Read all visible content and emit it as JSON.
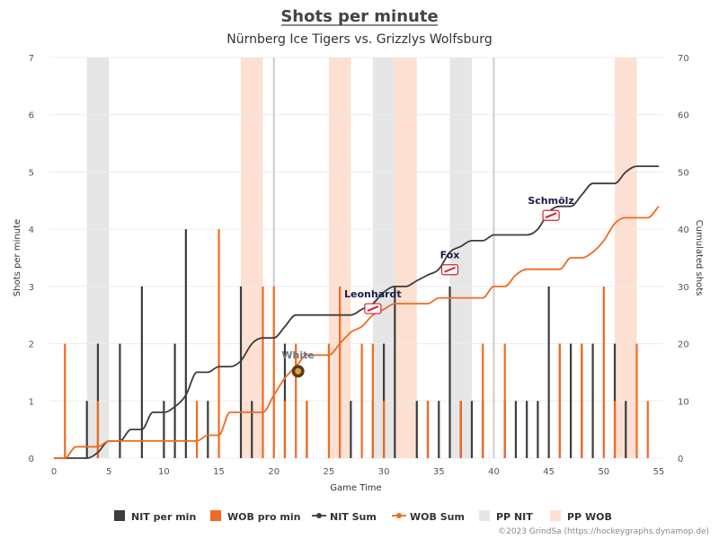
{
  "chart_data": {
    "type": "bar",
    "title": "Shots per minute",
    "subtitle": "Nürnberg Ice Tigers vs. Grizzlys Wolfsburg",
    "xlabel": "Game Time",
    "ylabel": "Shots per minute",
    "y2label": "Cumulated shots",
    "xlim": [
      0,
      55
    ],
    "ylim": [
      0,
      7
    ],
    "y2lim": [
      0,
      70
    ],
    "x_ticks": [
      0,
      5,
      10,
      15,
      20,
      25,
      30,
      35,
      40,
      45,
      50,
      55
    ],
    "y_ticks": [
      0,
      1,
      2,
      3,
      4,
      5,
      6,
      7
    ],
    "y2_ticks": [
      0,
      10,
      20,
      30,
      40,
      50,
      60,
      70
    ],
    "period_lines": [
      20,
      40
    ],
    "grid": true,
    "legend_position": "bottom",
    "colors": {
      "nit": "#3d3d3d",
      "wob": "#f26a21",
      "pp_nit": "#e6e6e6",
      "pp_wob": "#fde0d1",
      "period_line": "#cccccc"
    },
    "legend": [
      {
        "label": "NIT per min",
        "kind": "bar",
        "color": "#3d3d3d"
      },
      {
        "label": "WOB pro min",
        "kind": "bar",
        "color": "#f26a21"
      },
      {
        "label": "NIT Sum",
        "kind": "line",
        "color": "#3d3d3d"
      },
      {
        "label": "WOB Sum",
        "kind": "line",
        "color": "#f26a21"
      },
      {
        "label": "PP NIT",
        "kind": "band",
        "color": "#e6e6e6"
      },
      {
        "label": "PP WOB",
        "kind": "band",
        "color": "#fde0d1"
      }
    ],
    "pp_nit": [
      [
        3,
        5
      ],
      [
        29,
        31
      ],
      [
        36,
        38
      ]
    ],
    "pp_wob": [
      [
        17,
        19
      ],
      [
        25,
        27
      ],
      [
        31,
        33
      ],
      [
        51,
        53
      ]
    ],
    "series": [
      {
        "name": "NIT per min",
        "x": [
          3,
          4,
          6,
          8,
          10,
          11,
          12,
          14,
          17,
          18,
          21,
          23,
          27,
          29,
          30,
          31,
          33,
          34,
          35,
          36,
          37,
          38,
          39,
          41,
          42,
          43,
          44,
          45,
          46,
          47,
          48,
          49,
          51,
          52
        ],
        "values": [
          1,
          2,
          2,
          3,
          1,
          2,
          4,
          1,
          3,
          1,
          2,
          1,
          1,
          1,
          2,
          3,
          1,
          1,
          1,
          3,
          1,
          1,
          1,
          1,
          1,
          1,
          1,
          3,
          2,
          2,
          2,
          2,
          2,
          1
        ]
      },
      {
        "name": "WOB pro min",
        "x": [
          1,
          4,
          13,
          15,
          19,
          20,
          21,
          22,
          23,
          25,
          26,
          28,
          29,
          30,
          34,
          37,
          39,
          41,
          46,
          48,
          50,
          51,
          53,
          54
        ],
        "values": [
          2,
          1,
          1,
          4,
          3,
          3,
          1,
          2,
          1,
          2,
          3,
          2,
          2,
          1,
          1,
          1,
          2,
          2,
          2,
          2,
          3,
          1,
          2,
          1
        ]
      },
      {
        "name": "NIT Sum",
        "x": [
          0,
          3,
          4,
          5,
          6,
          7,
          8,
          9,
          10,
          11,
          12,
          13,
          14,
          15,
          16,
          17,
          18,
          19,
          20,
          21,
          22,
          23,
          24,
          25,
          26,
          27,
          28,
          29,
          30,
          31,
          32,
          33,
          34,
          35,
          36,
          37,
          38,
          39,
          40,
          41,
          42,
          43,
          44,
          45,
          46,
          47,
          48,
          49,
          50,
          51,
          52,
          53,
          55
        ],
        "values": [
          0,
          0,
          1,
          3,
          3,
          5,
          5,
          8,
          8,
          9,
          11,
          15,
          15,
          16,
          16,
          17,
          20,
          21,
          21,
          23,
          25,
          25,
          25,
          25,
          25,
          25,
          26,
          27,
          29,
          30,
          30,
          31,
          32,
          33,
          36,
          37,
          38,
          38,
          39,
          39,
          39,
          39,
          40,
          43,
          44,
          44,
          46,
          48,
          48,
          48,
          50,
          51,
          51
        ]
      },
      {
        "name": "WOB Sum",
        "x": [
          0,
          1,
          2,
          3,
          4,
          5,
          6,
          7,
          8,
          9,
          10,
          11,
          12,
          13,
          14,
          15,
          16,
          17,
          18,
          19,
          20,
          21,
          22,
          23,
          24,
          25,
          26,
          27,
          28,
          29,
          30,
          31,
          32,
          33,
          34,
          35,
          36,
          37,
          38,
          39,
          40,
          41,
          42,
          43,
          44,
          45,
          46,
          47,
          48,
          49,
          50,
          51,
          52,
          53,
          54,
          55
        ],
        "values": [
          0,
          0,
          2,
          2,
          2,
          3,
          3,
          3,
          3,
          3,
          3,
          3,
          3,
          3,
          4,
          4,
          8,
          8,
          8,
          8,
          11,
          14,
          16,
          18,
          18,
          18,
          20,
          22,
          23,
          25,
          26,
          27,
          27,
          27,
          27,
          28,
          28,
          28,
          28,
          28,
          30,
          30,
          32,
          33,
          33,
          33,
          33,
          35,
          35,
          36,
          38,
          41,
          42,
          42,
          42,
          44
        ]
      }
    ],
    "annotations": [
      {
        "label": "White",
        "x": 22.2,
        "y2": 15.5,
        "team": "wob"
      },
      {
        "label": "Leonhardt",
        "x": 29.0,
        "y2": 26.2,
        "team": "nit"
      },
      {
        "label": "Fox",
        "x": 36.0,
        "y2": 33.0,
        "team": "nit"
      },
      {
        "label": "Schmölz",
        "x": 45.2,
        "y2": 42.5,
        "team": "nit"
      }
    ],
    "credit": "©2023 GrindSa (https://hockeygraphs.dynamop.de)"
  }
}
